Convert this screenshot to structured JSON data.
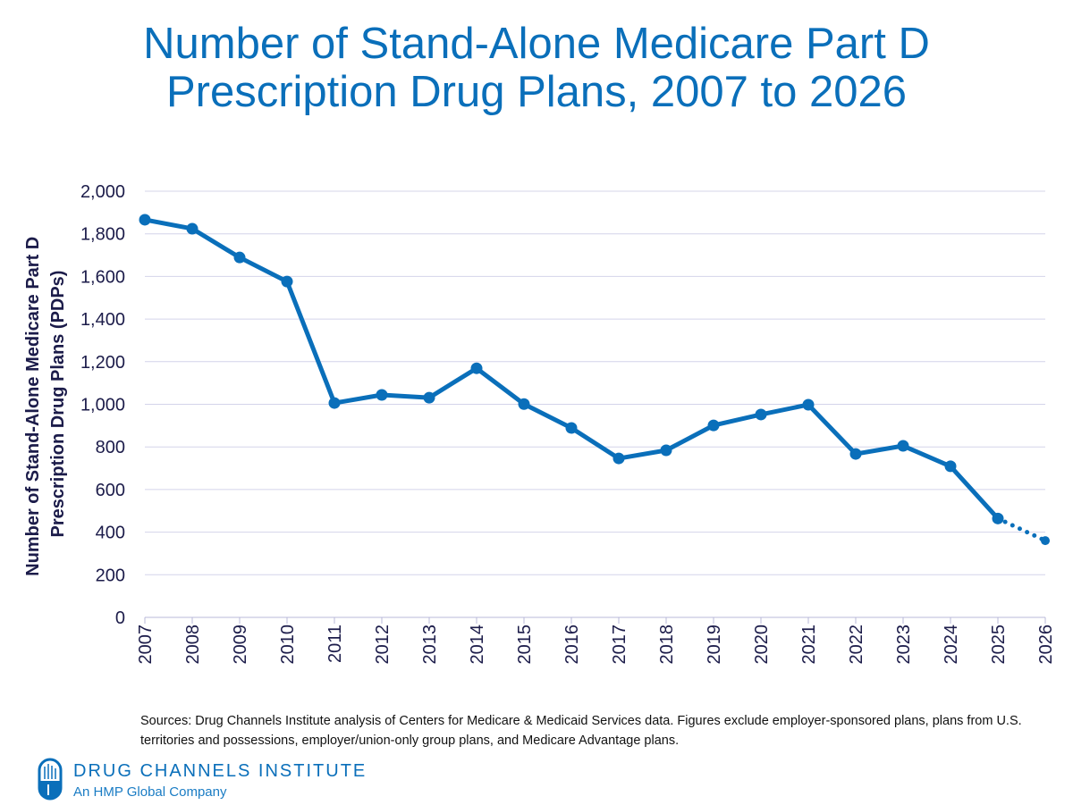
{
  "chart_data": {
    "type": "line",
    "title": "Number of Stand-Alone Medicare Part D Prescription Drug Plans, 2007 to 2026",
    "title_lines": [
      "Number of Stand-Alone Medicare Part D",
      "Prescription Drug Plans, 2007 to 2026"
    ],
    "ylabel_lines": [
      "Number of Stand-Alone Medicare Part D",
      "Prescription Drug Plans (PDPs)"
    ],
    "xlabel": "",
    "ylim": [
      0,
      2000
    ],
    "yticks": [
      "0",
      "200",
      "400",
      "600",
      "800",
      "1,000",
      "1,200",
      "1,400",
      "1,600",
      "1,800",
      "2,000"
    ],
    "grid": true,
    "x": [
      "2007",
      "2008",
      "2009",
      "2010",
      "2011",
      "2012",
      "2013",
      "2014",
      "2015",
      "2016",
      "2017",
      "2018",
      "2019",
      "2020",
      "2021",
      "2022",
      "2023",
      "2024",
      "2025",
      "2026"
    ],
    "series": [
      {
        "values": [
          1866,
          1824,
          1689,
          1576,
          1006,
          1044,
          1031,
          1169,
          1001,
          889,
          746,
          784,
          901,
          952,
          998,
          767,
          805,
          709,
          464,
          360
        ],
        "color": "#0a6fba",
        "projected_from": "2025"
      }
    ]
  },
  "sources": "Sources: Drug Channels Institute analysis of Centers for Medicare & Medicaid Services data. Figures exclude employer-sponsored plans, plans from U.S. territories and possessions, employer/union-only group plans, and Medicare Advantage plans.",
  "logo": {
    "name": "DRUG CHANNELS INSTITUTE",
    "tagline": "An HMP Global Company"
  }
}
